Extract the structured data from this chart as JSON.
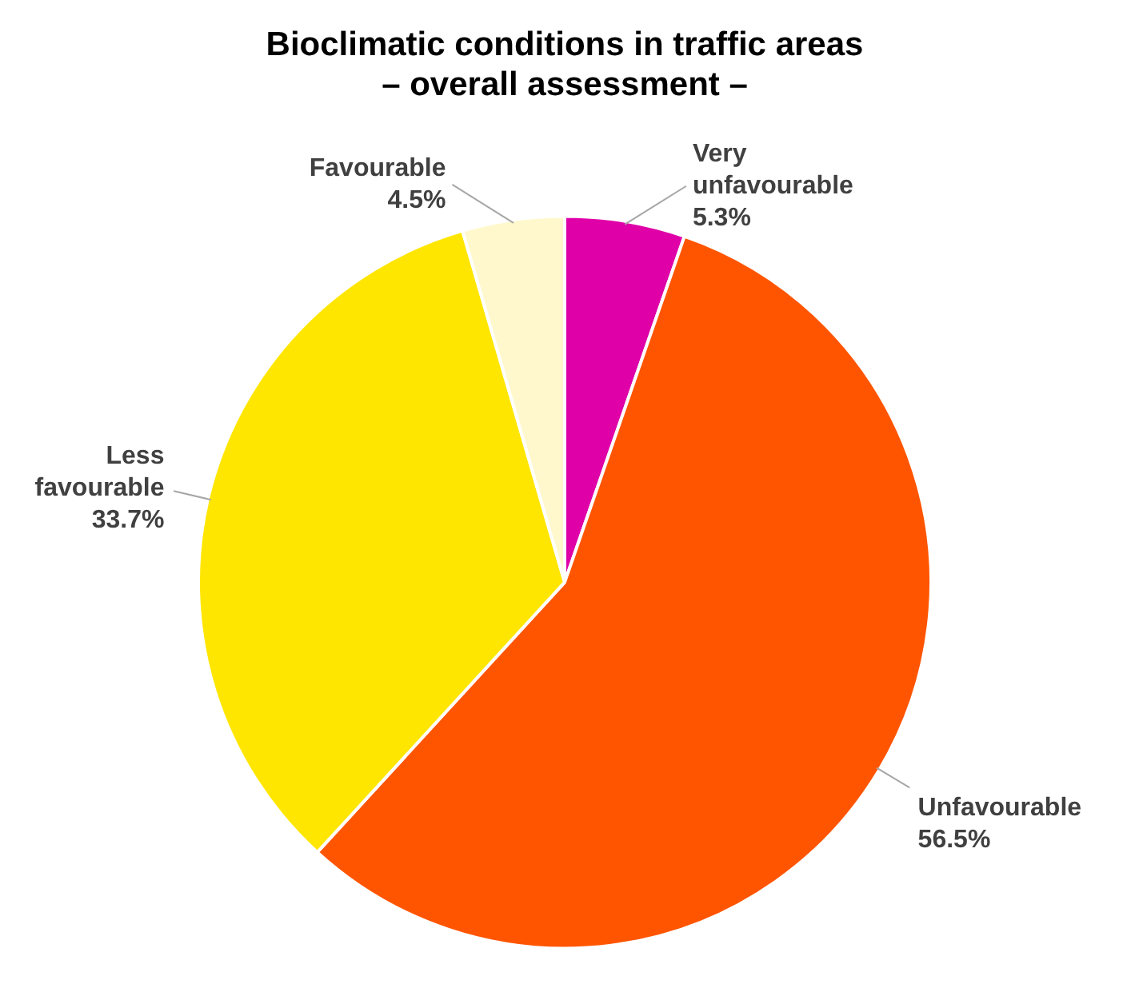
{
  "chart_data": {
    "type": "pie",
    "title": "Bioclimatic conditions in traffic areas\n– overall assessment –",
    "categories": [
      "Very unfavourable",
      "Unfavourable",
      "Less favourable",
      "Favourable"
    ],
    "values": [
      5.3,
      56.5,
      33.7,
      4.5
    ],
    "colors": [
      "#e000a8",
      "#ff5500",
      "#ffe600",
      "#fff8cc"
    ],
    "value_labels": [
      "5.3%",
      "56.5%",
      "33.7%",
      "4.5%"
    ],
    "legend": false
  }
}
